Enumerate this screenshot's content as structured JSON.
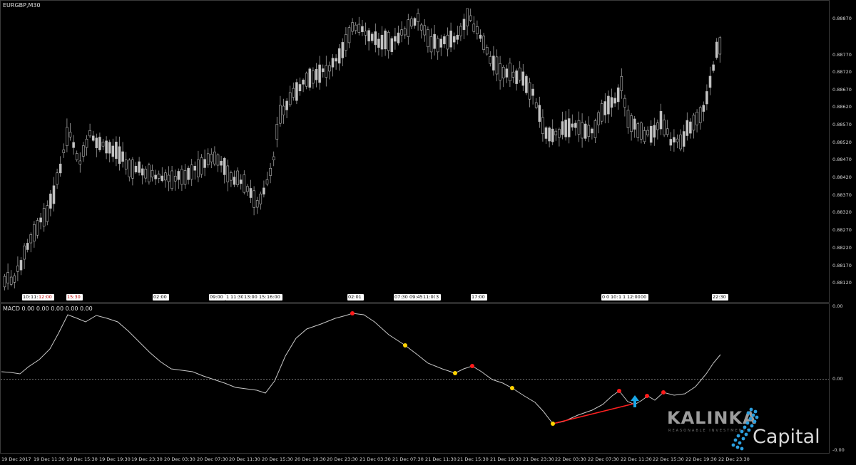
{
  "window": {
    "symbol_title": "EURGBP,M30"
  },
  "macd_panel": {
    "title": "MACD 0.00 0.00 0.00 0.00 0.00"
  },
  "price_axis": {
    "ticks": [
      "0.88870",
      "0.88770",
      "0.88720",
      "0.88670",
      "0.88620",
      "0.88570",
      "0.88520",
      "0.88470",
      "0.88420",
      "0.88370",
      "0.88320",
      "0.88270",
      "0.88220",
      "0.88170",
      "0.88120"
    ]
  },
  "macd_axis": {
    "ticks": [
      "0.00",
      "0.00",
      "-0.00"
    ]
  },
  "time_axis": {
    "ticks": [
      "19 Dec 2017",
      "19 Dec 11:30",
      "19 Dec 15:30",
      "19 Dec 19:30",
      "19 Dec 23:30",
      "20 Dec 03:30",
      "20 Dec 07:30",
      "20 Dec 11:30",
      "20 Dec 15:30",
      "20 Dec 19:30",
      "20 Dec 23:30",
      "21 Dec 03:30",
      "21 Dec 07:30",
      "21 Dec 11:30",
      "21 Dec 15:30",
      "21 Dec 19:30",
      "21 Dec 23:30",
      "22 Dec 03:30",
      "22 Dec 07:30",
      "22 Dec 11:30",
      "22 Dec 15:30",
      "22 Dec 19:30",
      "22 Dec 23:30"
    ]
  },
  "event_flags": [
    {
      "text": "10:"
    },
    {
      "text": "11:"
    },
    {
      "text": "12:00",
      "color": "red"
    },
    {
      "text": "15:30",
      "color": "red"
    },
    {
      "text": "02:00"
    },
    {
      "text": "09:00"
    },
    {
      "text": "1"
    },
    {
      "text": "11:30"
    },
    {
      "text": "13:00"
    },
    {
      "text": "15:"
    },
    {
      "text": "16:00"
    },
    {
      "text": "02:01"
    },
    {
      "text": "07:30"
    },
    {
      "text": "09:45"
    },
    {
      "text": "11:00"
    },
    {
      "text": "3"
    },
    {
      "text": "17:00"
    },
    {
      "text": "0"
    },
    {
      "text": "0"
    },
    {
      "text": "10:"
    },
    {
      "text": "1"
    },
    {
      "text": "1"
    },
    {
      "text": "12:00"
    },
    {
      "text": "00"
    },
    {
      "text": "22:30"
    }
  ],
  "logo": {
    "brand": "KALINKA",
    "tagline": "REASONABLE INVESTMENTS",
    "word": "Capital"
  },
  "colors": {
    "background": "#000000",
    "candle": "#b8b8b8",
    "macd_line": "#c8c8c8",
    "zero_line": "#9a9a9a",
    "dot_red": "#ff1a1a",
    "dot_yellow": "#ffd400",
    "trend_line": "#ff2020",
    "arrow": "#19a7e8",
    "logo_blue": "#2b9fe0"
  }
}
